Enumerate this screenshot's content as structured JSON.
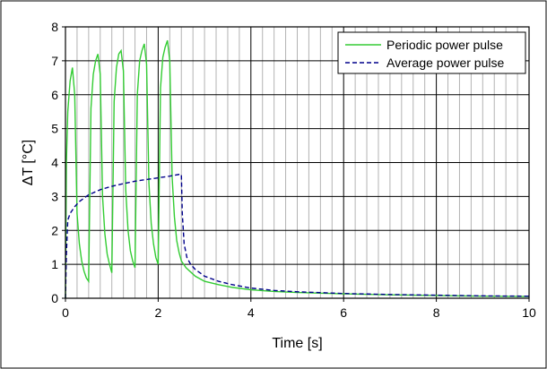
{
  "chart_data": {
    "type": "line",
    "xlabel": "Time [s]",
    "ylabel": "ΔT [°C]",
    "xlim": [
      0,
      10
    ],
    "ylim": [
      0,
      8
    ],
    "x_major_ticks": [
      0,
      2,
      4,
      6,
      8,
      10
    ],
    "x_minor_step": 0.25,
    "y_ticks": [
      0,
      1,
      2,
      3,
      4,
      5,
      6,
      7,
      8
    ],
    "x_tick_labels": [
      "0",
      "2",
      "4",
      "6",
      "8",
      "10"
    ],
    "y_tick_labels": [
      "0",
      "1",
      "2",
      "3",
      "4",
      "5",
      "6",
      "7",
      "8"
    ],
    "grid": true,
    "legend_position": "top-right",
    "series": [
      {
        "name": "Periodic power pulse",
        "color": "#33cc33",
        "style": "solid",
        "x": [
          0,
          0.02,
          0.05,
          0.1,
          0.15,
          0.2,
          0.25,
          0.3,
          0.35,
          0.4,
          0.45,
          0.5,
          0.5,
          0.55,
          0.6,
          0.65,
          0.7,
          0.75,
          0.8,
          0.85,
          0.9,
          0.95,
          1.0,
          1.0,
          1.05,
          1.1,
          1.15,
          1.2,
          1.25,
          1.3,
          1.35,
          1.4,
          1.45,
          1.5,
          1.5,
          1.55,
          1.6,
          1.65,
          1.7,
          1.75,
          1.8,
          1.85,
          1.9,
          1.95,
          2.0,
          2.0,
          2.05,
          2.1,
          2.15,
          2.2,
          2.25,
          2.3,
          2.35,
          2.4,
          2.45,
          2.5,
          2.6,
          2.8,
          3.0,
          3.3,
          3.6,
          4.0,
          4.5,
          5.0,
          6.0,
          7.0,
          8.0,
          9.0,
          10.0
        ],
        "y": [
          0,
          4.0,
          5.5,
          6.4,
          6.8,
          6.0,
          2.5,
          1.6,
          1.1,
          0.8,
          0.6,
          0.5,
          0.5,
          5.6,
          6.6,
          7.0,
          7.2,
          6.6,
          3.0,
          1.9,
          1.3,
          1.0,
          0.75,
          0.75,
          5.8,
          6.8,
          7.2,
          7.3,
          6.7,
          3.2,
          2.0,
          1.4,
          1.1,
          0.9,
          0.9,
          6.0,
          7.0,
          7.3,
          7.5,
          6.9,
          3.4,
          2.2,
          1.6,
          1.2,
          1.0,
          1.0,
          6.2,
          7.1,
          7.4,
          7.6,
          7.0,
          3.6,
          2.4,
          1.7,
          1.35,
          1.1,
          0.9,
          0.65,
          0.5,
          0.4,
          0.32,
          0.25,
          0.2,
          0.17,
          0.13,
          0.1,
          0.08,
          0.06,
          0.05
        ]
      },
      {
        "name": "Average power pulse",
        "color": "#00008b",
        "style": "dashed",
        "x": [
          0,
          0.02,
          0.05,
          0.1,
          0.2,
          0.3,
          0.5,
          0.75,
          1.0,
          1.25,
          1.5,
          1.75,
          2.0,
          2.25,
          2.45,
          2.5,
          2.52,
          2.56,
          2.62,
          2.7,
          2.8,
          3.0,
          3.3,
          3.6,
          4.0,
          4.5,
          5.0,
          6.0,
          7.0,
          8.0,
          9.0,
          10.0
        ],
        "y": [
          0,
          1.3,
          2.3,
          2.5,
          2.7,
          2.85,
          3.05,
          3.2,
          3.3,
          3.38,
          3.45,
          3.5,
          3.55,
          3.6,
          3.65,
          3.65,
          2.5,
          1.6,
          1.2,
          1.0,
          0.85,
          0.65,
          0.5,
          0.4,
          0.3,
          0.23,
          0.19,
          0.14,
          0.11,
          0.09,
          0.07,
          0.06
        ]
      }
    ]
  }
}
